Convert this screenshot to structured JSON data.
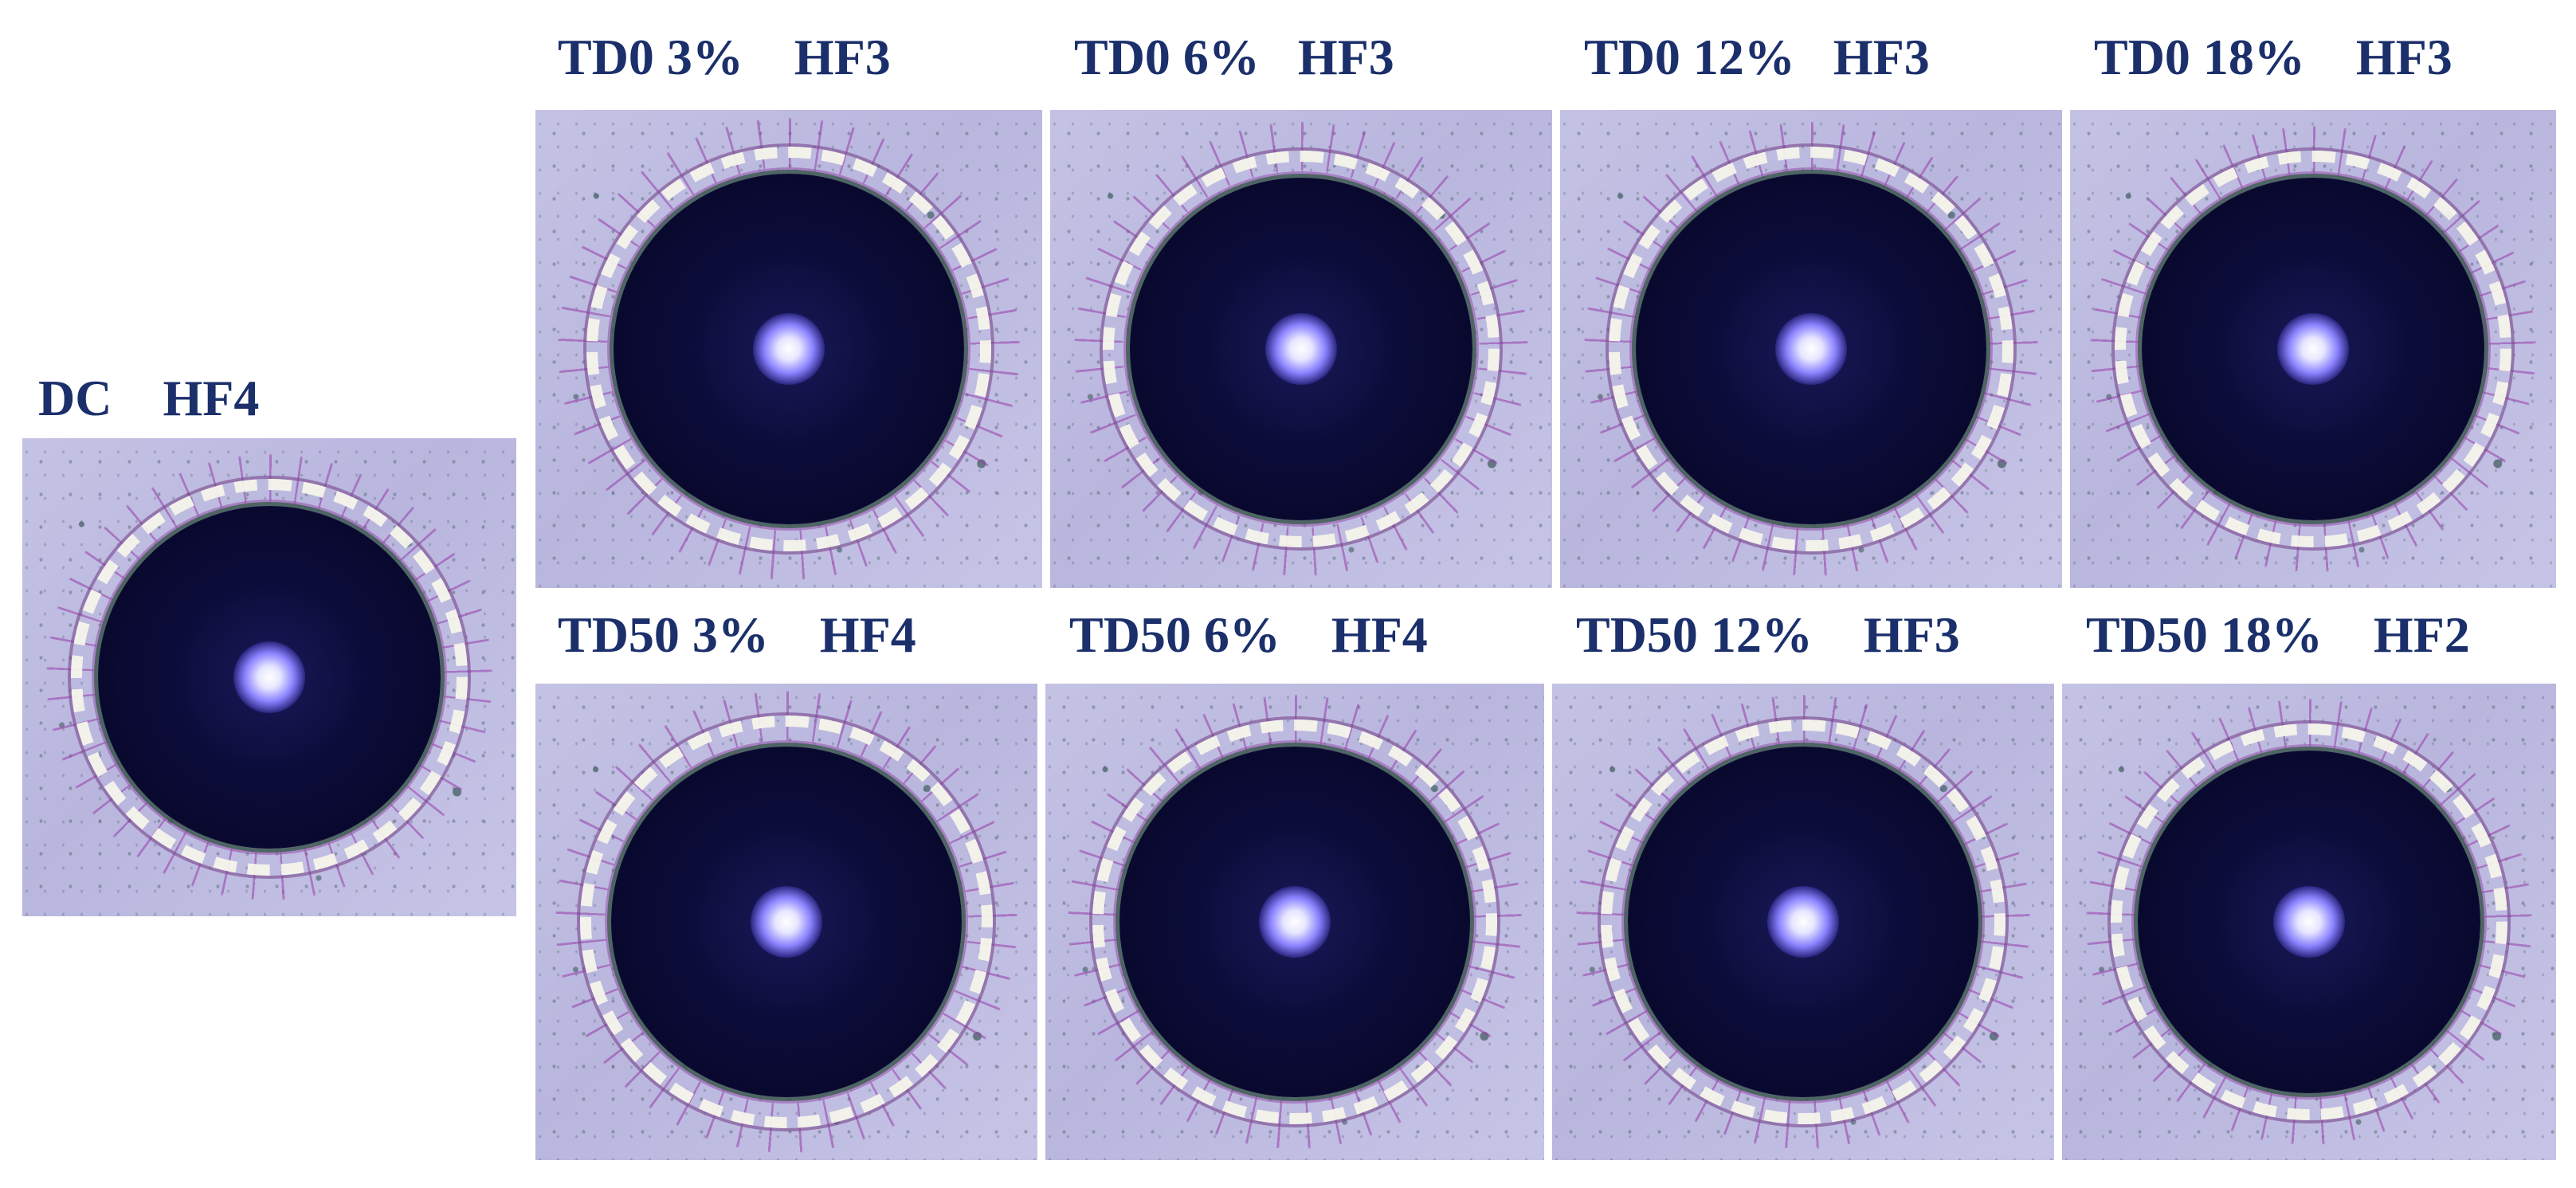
{
  "colors": {
    "label_text": "#1b2f6b",
    "substrate": "#c4c2e4",
    "spot": "#0c0c3a",
    "flake": "#f5f5eb"
  },
  "panels": {
    "dc": {
      "label": "DC    HF4"
    },
    "td0_3": {
      "label": "TD0 3%    HF3"
    },
    "td0_6": {
      "label": "TD0 6%   HF3"
    },
    "td0_12": {
      "label": "TD0 12%   HF3"
    },
    "td0_18": {
      "label": "TD0 18%    HF3"
    },
    "td50_3": {
      "label": "TD50 3%    HF4"
    },
    "td50_6": {
      "label": "TD50 6%    HF4"
    },
    "td50_12": {
      "label": "TD50 12%    HF3"
    },
    "td50_18": {
      "label": "TD50 18%    HF2"
    }
  }
}
